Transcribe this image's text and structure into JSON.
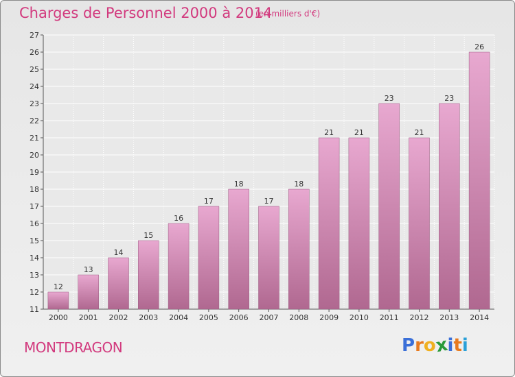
{
  "title": "Charges de Personnel 2000 à 2014",
  "subtitle": "(en milliers d'€)",
  "commune": "MONTDRAGON",
  "logo": {
    "letters": [
      "P",
      "r",
      "o",
      "x",
      "i",
      "t",
      "i"
    ],
    "colors": [
      "#3a6fd8",
      "#e87a1e",
      "#f0b020",
      "#2a9a3a",
      "#3a6fd8",
      "#e87a1e",
      "#2aa0d8"
    ]
  },
  "colors": {
    "accent": "#d23a7e",
    "bar_top": "#e8a8d0",
    "bar_bottom": "#b06890"
  },
  "chart_data": {
    "type": "bar",
    "title": "Charges de Personnel 2000 à 2014",
    "subtitle": "(en milliers d'€)",
    "categories": [
      "2000",
      "2001",
      "2002",
      "2003",
      "2004",
      "2005",
      "2006",
      "2007",
      "2008",
      "2009",
      "2010",
      "2011",
      "2012",
      "2013",
      "2014"
    ],
    "values": [
      12,
      13,
      14,
      15,
      16,
      17,
      18,
      17,
      18,
      21,
      21,
      23,
      21,
      23,
      26
    ],
    "ylim": [
      11,
      27
    ],
    "yticks": [
      11,
      12,
      13,
      14,
      15,
      16,
      17,
      18,
      19,
      20,
      21,
      22,
      23,
      24,
      25,
      26,
      27
    ],
    "grid": true,
    "xlabel": "",
    "ylabel": ""
  }
}
